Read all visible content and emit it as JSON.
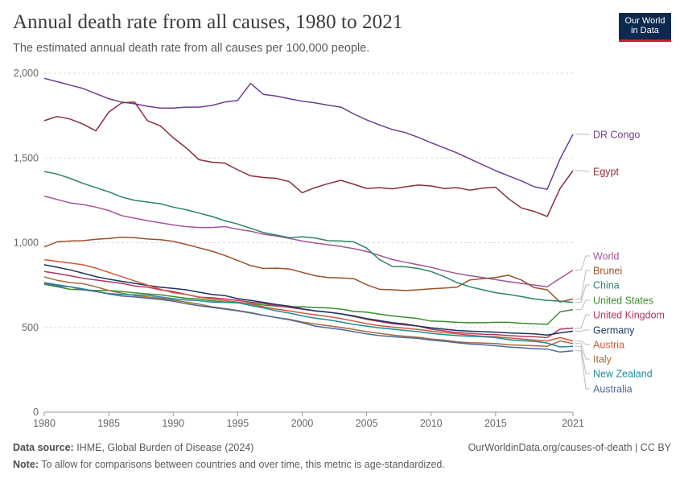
{
  "header": {
    "title": "Annual death rate from all causes, 1980 to 2021",
    "subtitle": "The estimated annual death rate from all causes per 100,000 people.",
    "logo_line1": "Our World",
    "logo_line2": "in Data"
  },
  "footer": {
    "source_label": "Data source:",
    "source_text": " IHME, Global Burden of Disease (2024)",
    "url": "OurWorldinData.org/causes-of-death | CC BY",
    "note_label": "Note:",
    "note_text": " To allow for comparisons between countries and over time, this metric is age-standardized."
  },
  "colors": {
    "axis": "#666666",
    "grid": "#dddddd",
    "text": "#666666"
  },
  "chart_data": {
    "type": "line",
    "title": "Annual death rate from all causes, 1980 to 2021",
    "xlabel": "",
    "ylabel": "",
    "xlim": [
      1980,
      2021
    ],
    "ylim": [
      0,
      2000
    ],
    "x_ticks": [
      1980,
      1985,
      1990,
      1995,
      2000,
      2005,
      2010,
      2015,
      2021
    ],
    "y_ticks": [
      0,
      500,
      1000,
      1500,
      2000
    ],
    "y_tick_labels": [
      "0",
      "500",
      "1,000",
      "1,500",
      "2,000"
    ],
    "x": [
      1980,
      1981,
      1982,
      1983,
      1984,
      1985,
      1986,
      1987,
      1988,
      1989,
      1990,
      1991,
      1992,
      1993,
      1994,
      1995,
      1996,
      1997,
      1998,
      1999,
      2000,
      2001,
      2002,
      2003,
      2004,
      2005,
      2006,
      2007,
      2008,
      2009,
      2010,
      2011,
      2012,
      2013,
      2014,
      2015,
      2016,
      2017,
      2018,
      2019,
      2020,
      2021
    ],
    "series": [
      {
        "name": "DR Congo",
        "color": "#6d3e91",
        "values": [
          1970,
          1950,
          1930,
          1910,
          1880,
          1850,
          1830,
          1820,
          1805,
          1795,
          1795,
          1800,
          1800,
          1810,
          1830,
          1840,
          1940,
          1875,
          1865,
          1850,
          1835,
          1825,
          1812,
          1800,
          1760,
          1725,
          1695,
          1668,
          1650,
          1622,
          1590,
          1560,
          1530,
          1495,
          1460,
          1425,
          1395,
          1365,
          1330,
          1315,
          1495,
          1640
        ]
      },
      {
        "name": "Egypt",
        "color": "#883039",
        "values": [
          1720,
          1745,
          1730,
          1700,
          1660,
          1770,
          1825,
          1830,
          1720,
          1690,
          1620,
          1560,
          1490,
          1475,
          1470,
          1430,
          1395,
          1385,
          1380,
          1360,
          1295,
          1325,
          1348,
          1368,
          1345,
          1320,
          1325,
          1318,
          1330,
          1340,
          1335,
          1320,
          1325,
          1310,
          1322,
          1328,
          1260,
          1205,
          1185,
          1155,
          1320,
          1425
        ]
      },
      {
        "name": "World",
        "color": "#a2559c",
        "values": [
          1275,
          1255,
          1235,
          1225,
          1210,
          1190,
          1160,
          1145,
          1130,
          1118,
          1105,
          1095,
          1090,
          1090,
          1095,
          1080,
          1068,
          1050,
          1040,
          1025,
          1010,
          998,
          988,
          978,
          965,
          948,
          925,
          900,
          885,
          870,
          855,
          835,
          818,
          805,
          795,
          782,
          770,
          760,
          750,
          740,
          790,
          838
        ]
      },
      {
        "name": "Brunei",
        "color": "#9a5129",
        "values": [
          975,
          1005,
          1010,
          1012,
          1020,
          1025,
          1033,
          1030,
          1022,
          1018,
          1008,
          990,
          970,
          950,
          925,
          895,
          865,
          848,
          850,
          845,
          825,
          805,
          795,
          792,
          788,
          752,
          725,
          722,
          718,
          722,
          728,
          732,
          738,
          780,
          788,
          795,
          808,
          780,
          735,
          722,
          650,
          668
        ]
      },
      {
        "name": "China",
        "color": "#2c8465",
        "values": [
          1420,
          1405,
          1380,
          1350,
          1325,
          1300,
          1270,
          1250,
          1240,
          1230,
          1210,
          1195,
          1175,
          1155,
          1130,
          1110,
          1085,
          1060,
          1045,
          1030,
          1035,
          1028,
          1012,
          1010,
          1005,
          968,
          900,
          860,
          858,
          848,
          830,
          800,
          765,
          740,
          722,
          705,
          695,
          682,
          668,
          660,
          655,
          648
        ]
      },
      {
        "name": "United States",
        "color": "#3c8d2b",
        "values": [
          755,
          740,
          725,
          722,
          718,
          718,
          712,
          704,
          698,
          692,
          682,
          672,
          668,
          658,
          650,
          648,
          642,
          632,
          626,
          622,
          622,
          618,
          615,
          608,
          595,
          590,
          578,
          568,
          560,
          552,
          538,
          535,
          530,
          528,
          528,
          530,
          530,
          525,
          522,
          518,
          592,
          605
        ]
      },
      {
        "name": "United Kingdom",
        "color": "#b13664",
        "values": [
          830,
          818,
          805,
          790,
          780,
          770,
          760,
          745,
          738,
          722,
          712,
          695,
          678,
          675,
          668,
          660,
          650,
          642,
          628,
          618,
          608,
          598,
          590,
          580,
          565,
          548,
          535,
          522,
          515,
          508,
          490,
          480,
          470,
          465,
          460,
          458,
          452,
          448,
          445,
          440,
          490,
          495
        ]
      },
      {
        "name": "Germany",
        "color": "#18355f",
        "values": [
          870,
          855,
          840,
          820,
          800,
          785,
          772,
          760,
          748,
          738,
          730,
          722,
          708,
          695,
          688,
          670,
          660,
          648,
          635,
          625,
          610,
          598,
          590,
          580,
          568,
          552,
          540,
          528,
          520,
          508,
          498,
          490,
          482,
          478,
          475,
          472,
          468,
          465,
          462,
          455,
          468,
          478
        ]
      },
      {
        "name": "Austria",
        "color": "#d2573b",
        "values": [
          900,
          890,
          880,
          870,
          850,
          825,
          800,
          775,
          750,
          725,
          705,
          695,
          680,
          668,
          658,
          650,
          638,
          622,
          608,
          598,
          585,
          575,
          565,
          552,
          538,
          522,
          510,
          502,
          495,
          488,
          478,
          470,
          462,
          455,
          448,
          445,
          438,
          432,
          425,
          420,
          440,
          420
        ]
      },
      {
        "name": "Italy",
        "color": "#a26a3c",
        "values": [
          798,
          778,
          765,
          758,
          740,
          718,
          702,
          688,
          680,
          672,
          662,
          650,
          638,
          622,
          612,
          600,
          588,
          572,
          558,
          548,
          532,
          520,
          510,
          500,
          488,
          475,
          465,
          455,
          448,
          442,
          432,
          425,
          415,
          410,
          408,
          405,
          398,
          395,
          392,
          388,
          420,
          405
        ]
      },
      {
        "name": "New Zealand",
        "color": "#1d8b9a",
        "values": [
          765,
          752,
          740,
          728,
          712,
          700,
          695,
          692,
          690,
          680,
          670,
          662,
          658,
          650,
          648,
          645,
          630,
          615,
          598,
          585,
          568,
          555,
          545,
          532,
          518,
          508,
          498,
          490,
          482,
          475,
          465,
          458,
          452,
          448,
          445,
          440,
          428,
          422,
          418,
          408,
          385,
          388
        ]
      },
      {
        "name": "Australia",
        "color": "#4c6a9c",
        "values": [
          760,
          745,
          740,
          722,
          712,
          698,
          685,
          680,
          672,
          665,
          655,
          640,
          628,
          618,
          608,
          598,
          585,
          572,
          558,
          545,
          528,
          508,
          498,
          488,
          475,
          462,
          452,
          445,
          440,
          435,
          425,
          418,
          410,
          402,
          398,
          392,
          385,
          380,
          375,
          372,
          355,
          362
        ]
      }
    ],
    "end_labels": [
      {
        "name": "DR Congo",
        "color": "#6d3e91",
        "y": 167
      },
      {
        "name": "Egypt",
        "color": "#883039",
        "y": 213
      },
      {
        "name": "World",
        "color": "#a2559c",
        "y": 318
      },
      {
        "name": "Brunei",
        "color": "#9a5129",
        "y": 336
      },
      {
        "name": "China",
        "color": "#2c8465",
        "y": 354
      },
      {
        "name": "United States",
        "color": "#3c8d2b",
        "y": 373
      },
      {
        "name": "United Kingdom",
        "color": "#b13664",
        "y": 391
      },
      {
        "name": "Germany",
        "color": "#18355f",
        "y": 410
      },
      {
        "name": "Austria",
        "color": "#d2573b",
        "y": 428
      },
      {
        "name": "Italy",
        "color": "#a26a3c",
        "y": 446
      },
      {
        "name": "New Zealand",
        "color": "#1d8b9a",
        "y": 464
      },
      {
        "name": "Australia",
        "color": "#4c6a9c",
        "y": 483
      }
    ]
  }
}
